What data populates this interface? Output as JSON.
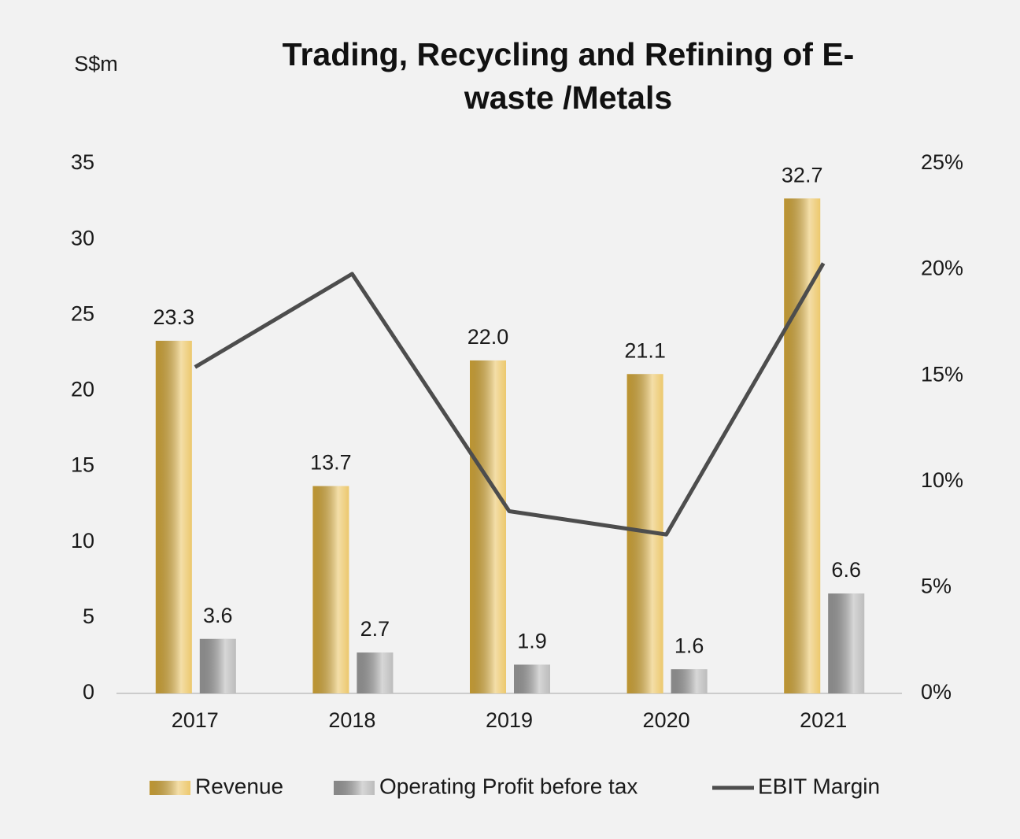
{
  "chart_data": {
    "type": "bar_line",
    "title": "Trading, Recycling and Refining of E-waste /Metals",
    "y_label": "S$m",
    "categories": [
      "2017",
      "2018",
      "2019",
      "2020",
      "2021"
    ],
    "series": [
      {
        "name": "Revenue",
        "color": "#e6b63d",
        "values": [
          23.3,
          13.7,
          22.0,
          21.1,
          32.7
        ],
        "value_labels": [
          "23.3",
          "13.7",
          "22.0",
          "21.1",
          "32.7"
        ]
      },
      {
        "name": "Operating Profit before tax",
        "color": "#a6a6a6",
        "values": [
          3.6,
          2.7,
          1.9,
          1.6,
          6.6
        ],
        "value_labels": [
          "3.6",
          "2.7",
          "1.9",
          "1.6",
          "6.6"
        ]
      },
      {
        "name": "EBIT Margin",
        "color": "#4d4d4d",
        "axis": "y2",
        "values": [
          15.4,
          19.8,
          8.6,
          7.5,
          20.3
        ]
      }
    ],
    "ylim": [
      0,
      35
    ],
    "yticks": [
      0,
      5,
      10,
      15,
      20,
      25,
      30,
      35
    ],
    "y2lim": [
      0,
      25
    ],
    "y2ticks": [
      {
        "value": 0,
        "label": "0%"
      },
      {
        "value": 5,
        "label": "5%"
      },
      {
        "value": 10,
        "label": "10%"
      },
      {
        "value": 15,
        "label": "15%"
      },
      {
        "value": 20,
        "label": "20%"
      },
      {
        "value": 25,
        "label": "25%"
      }
    ],
    "grid": false,
    "legend": "bottom"
  }
}
